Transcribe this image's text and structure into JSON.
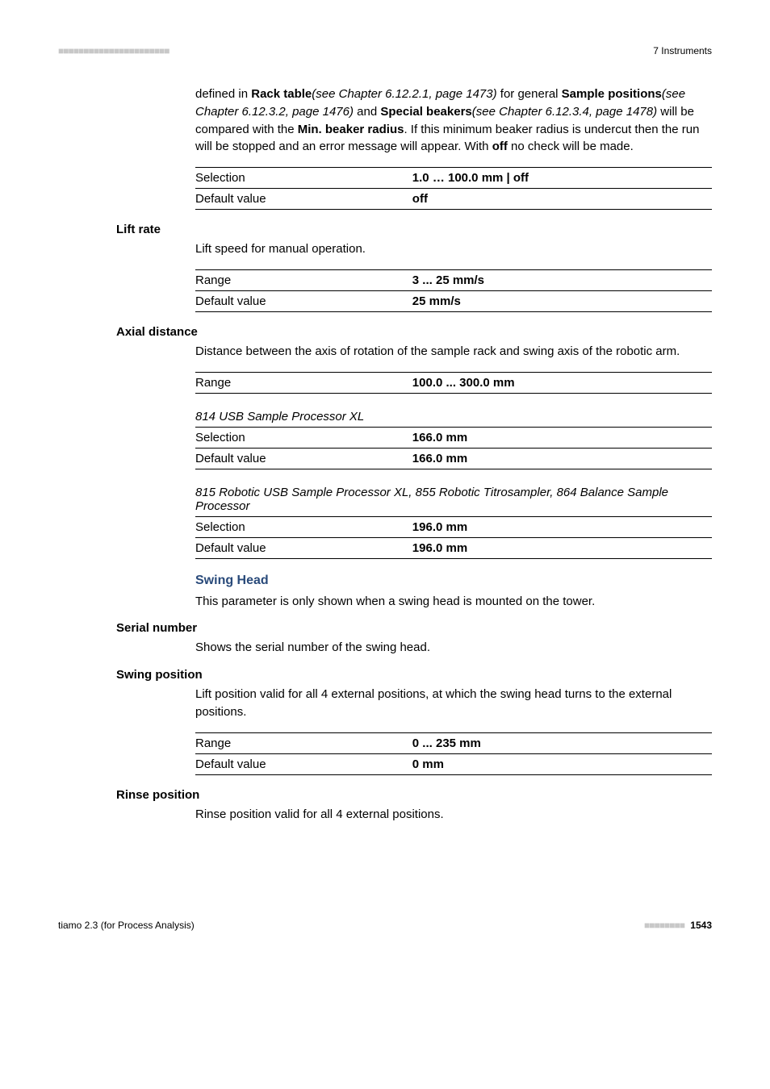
{
  "header": {
    "dashes": "■■■■■■■■■■■■■■■■■■■■■■",
    "right": "7 Instruments"
  },
  "intro": {
    "paraHtml": "defined in <span class=\"b\">Rack table</span><span class=\"italic\">(see Chapter 6.12.2.1, page 1473)</span> for general <span class=\"b\">Sample positions</span><span class=\"italic\">(see Chapter 6.12.3.2, page 1476)</span> and <span class=\"b\">Special beakers</span><span class=\"italic\">(see Chapter 6.12.3.4, page 1478)</span> will be compared with the <span class=\"b\">Min. beaker radius</span>. If this minimum beaker radius is undercut then the run will be stopped and an error message will appear. With <span class=\"b\">off</span> no check will be made.",
    "row1k": "Selection",
    "row1v": "1.0 … 100.0 mm | off",
    "row2k": "Default value",
    "row2v": "off"
  },
  "liftRate": {
    "label": "Lift rate",
    "para": "Lift speed for manual operation.",
    "row1k": "Range",
    "row1v": "3 ... 25 mm/s",
    "row2k": "Default value",
    "row2v": "25 mm/s"
  },
  "axial": {
    "label": "Axial distance",
    "para": "Distance between the axis of rotation of the sample rack and swing axis of the robotic arm.",
    "rangek": "Range",
    "rangev": "100.0 ... 300.0 mm",
    "sub1title": "814 USB Sample Processor XL",
    "sub1r1k": "Selection",
    "sub1r1v": "166.0 mm",
    "sub1r2k": "Default value",
    "sub1r2v": "166.0 mm",
    "sub2title": "815 Robotic USB Sample Processor XL, 855 Robotic Titrosampler, 864 Balance Sample Processor",
    "sub2r1k": "Selection",
    "sub2r1v": "196.0 mm",
    "sub2r2k": "Default value",
    "sub2r2v": "196.0 mm"
  },
  "swingHead": {
    "title": "Swing Head",
    "para": "This parameter is only shown when a swing head is mounted on the tower."
  },
  "serial": {
    "label": "Serial number",
    "para": "Shows the serial number of the swing head."
  },
  "swingPos": {
    "label": "Swing position",
    "para": "Lift position valid for all 4 external positions, at which the swing head turns to the external positions.",
    "row1k": "Range",
    "row1v": "0 ... 235 mm",
    "row2k": "Default value",
    "row2v": "0 mm"
  },
  "rinse": {
    "label": "Rinse position",
    "para": "Rinse position valid for all 4 external positions."
  },
  "footer": {
    "left": "tiamo 2.3 (for Process Analysis)",
    "dashes": "■■■■■■■■",
    "page": "1543"
  }
}
